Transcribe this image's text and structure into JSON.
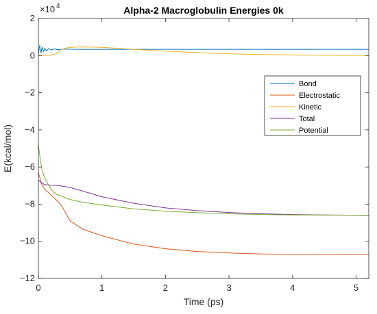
{
  "chart_data": {
    "type": "line",
    "title": "Alpha-2 Macroglobulin Energies 0k",
    "xlabel": "Time (ps)",
    "ylabel": "E(kcal/mol)",
    "y_exponent_label": "×10",
    "y_exponent_power": "4",
    "xlim": [
      0,
      5.2
    ],
    "ylim": [
      -12,
      2
    ],
    "x_ticks": [
      0,
      1,
      2,
      3,
      4,
      5
    ],
    "x_tick_labels": [
      "0",
      "1",
      "2",
      "3",
      "4",
      "5"
    ],
    "y_ticks": [
      2,
      0,
      -2,
      -4,
      -6,
      -8,
      -10,
      -12
    ],
    "y_tick_labels": [
      "2",
      "0",
      "−2",
      "−4",
      "−6",
      "−8",
      "−10",
      "−12"
    ],
    "grid": false,
    "legend_position": "right",
    "series": [
      {
        "name": "Bond",
        "color": "#0072bd",
        "x": [
          0,
          0.02,
          0.04,
          0.06,
          0.08,
          0.1,
          0.13,
          0.16,
          0.2,
          0.25,
          0.3,
          0.4,
          0.6,
          1.0,
          2.0,
          3.0,
          4.0,
          5.2
        ],
        "y": [
          0.1,
          0.55,
          0.15,
          0.45,
          0.2,
          0.4,
          0.25,
          0.38,
          0.3,
          0.36,
          0.32,
          0.35,
          0.34,
          0.34,
          0.34,
          0.34,
          0.34,
          0.34
        ]
      },
      {
        "name": "Electrostatic",
        "color": "#d95319",
        "x": [
          0,
          0.05,
          0.1,
          0.2,
          0.35,
          0.5,
          0.7,
          1.0,
          1.5,
          2.0,
          2.5,
          3.0,
          3.5,
          4.0,
          4.5,
          5.2
        ],
        "y": [
          -6.3,
          -6.9,
          -7.2,
          -7.5,
          -8.0,
          -8.9,
          -9.35,
          -9.7,
          -10.15,
          -10.4,
          -10.55,
          -10.63,
          -10.68,
          -10.7,
          -10.72,
          -10.73
        ]
      },
      {
        "name": "Kinetic",
        "color": "#edb120",
        "x": [
          0,
          0.1,
          0.2,
          0.28,
          0.35,
          0.45,
          0.6,
          0.8,
          1.0,
          1.2,
          1.5,
          2.0,
          2.5,
          3.0,
          3.5,
          4.0,
          4.5,
          5.2
        ],
        "y": [
          0,
          0,
          0.02,
          0.1,
          0.3,
          0.42,
          0.46,
          0.46,
          0.44,
          0.4,
          0.34,
          0.24,
          0.16,
          0.1,
          0.06,
          0.04,
          0.02,
          0.0
        ]
      },
      {
        "name": "Total",
        "color": "#7e2f8e",
        "x": [
          0,
          0.05,
          0.1,
          0.2,
          0.3,
          0.5,
          0.8,
          1.0,
          1.5,
          2.0,
          2.5,
          3.0,
          3.5,
          4.0,
          4.5,
          5.2
        ],
        "y": [
          -6.7,
          -6.85,
          -6.95,
          -6.98,
          -6.99,
          -7.1,
          -7.4,
          -7.6,
          -7.95,
          -8.2,
          -8.35,
          -8.45,
          -8.52,
          -8.56,
          -8.58,
          -8.6
        ]
      },
      {
        "name": "Potential",
        "color": "#77ac30",
        "x": [
          0,
          0.03,
          0.06,
          0.1,
          0.15,
          0.2,
          0.27,
          0.35,
          0.5,
          0.7,
          1.0,
          1.5,
          2.0,
          2.5,
          3.0,
          3.5,
          4.0,
          4.5,
          5.2
        ],
        "y": [
          -4.8,
          -5.6,
          -6.2,
          -6.6,
          -6.9,
          -7.2,
          -7.45,
          -7.55,
          -7.75,
          -7.9,
          -8.05,
          -8.25,
          -8.38,
          -8.46,
          -8.52,
          -8.56,
          -8.58,
          -8.59,
          -8.6
        ]
      }
    ]
  }
}
